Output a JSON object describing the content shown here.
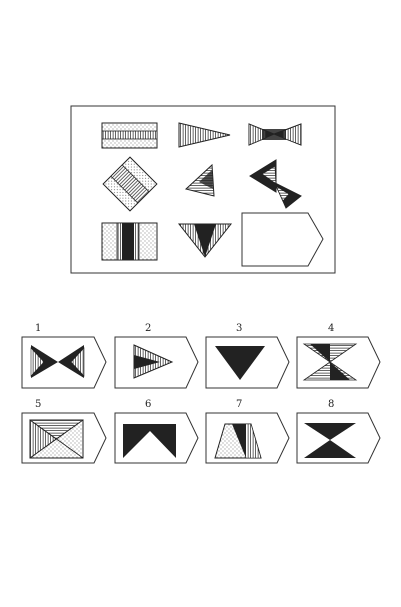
{
  "puzzle": {
    "matrix_cells": [
      {
        "id": "r1c1",
        "shape": "striped-rectangle-with-dotted-bands"
      },
      {
        "id": "r1c2",
        "shape": "striped-triangle-pointing-right"
      },
      {
        "id": "r1c3",
        "shape": "dark-bowtie-horizontal"
      },
      {
        "id": "r2c1",
        "shape": "tilted-striped-dotted-square"
      },
      {
        "id": "r2c2",
        "shape": "striped-triangle-tilted"
      },
      {
        "id": "r2c3",
        "shape": "tilted-dark-bowtie"
      },
      {
        "id": "r3c1",
        "shape": "square-with-dark-center-band"
      },
      {
        "id": "r3c2",
        "shape": "downward-triangle-striped-dark"
      },
      {
        "id": "r3c3",
        "shape": "empty-answer-slot"
      }
    ],
    "options": [
      {
        "label": "1",
        "shape": "bowtie-horizontal-striped-dark"
      },
      {
        "label": "2",
        "shape": "triangle-right-striped-dark"
      },
      {
        "label": "3",
        "shape": "solid-dark-down-triangle"
      },
      {
        "label": "4",
        "shape": "hourglass-striped-dark"
      },
      {
        "label": "5",
        "shape": "x-divided-dotted-striped-square"
      },
      {
        "label": "6",
        "shape": "dark-m-shape"
      },
      {
        "label": "7",
        "shape": "trapezoid-dotted-striped-dark"
      },
      {
        "label": "8",
        "shape": "solid-dark-hourglass"
      }
    ]
  }
}
